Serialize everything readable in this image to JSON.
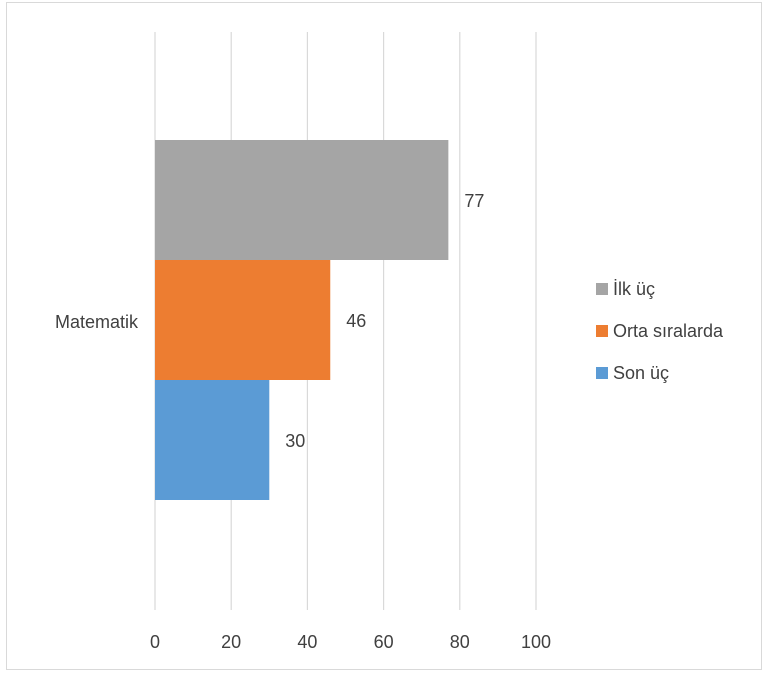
{
  "chart_data": {
    "type": "bar",
    "orientation": "horizontal",
    "categories": [
      "Matematik"
    ],
    "series": [
      {
        "name": "İlk üç",
        "values": [
          77
        ],
        "color": "#a5a5a5"
      },
      {
        "name": "Orta sıralarda",
        "values": [
          46
        ],
        "color": "#ed7d31"
      },
      {
        "name": "Son üç",
        "values": [
          30
        ],
        "color": "#5b9bd5"
      }
    ],
    "title": "",
    "xlabel": "",
    "ylabel": "",
    "xlim": [
      0,
      100
    ],
    "x_ticks": [
      "0",
      "20",
      "40",
      "60",
      "80",
      "100"
    ],
    "grid": true,
    "legend_position": "right",
    "data_labels": true,
    "colors": {
      "grid": "#d9d9d9",
      "text": "#404040",
      "border": "#d9d9d9"
    }
  }
}
